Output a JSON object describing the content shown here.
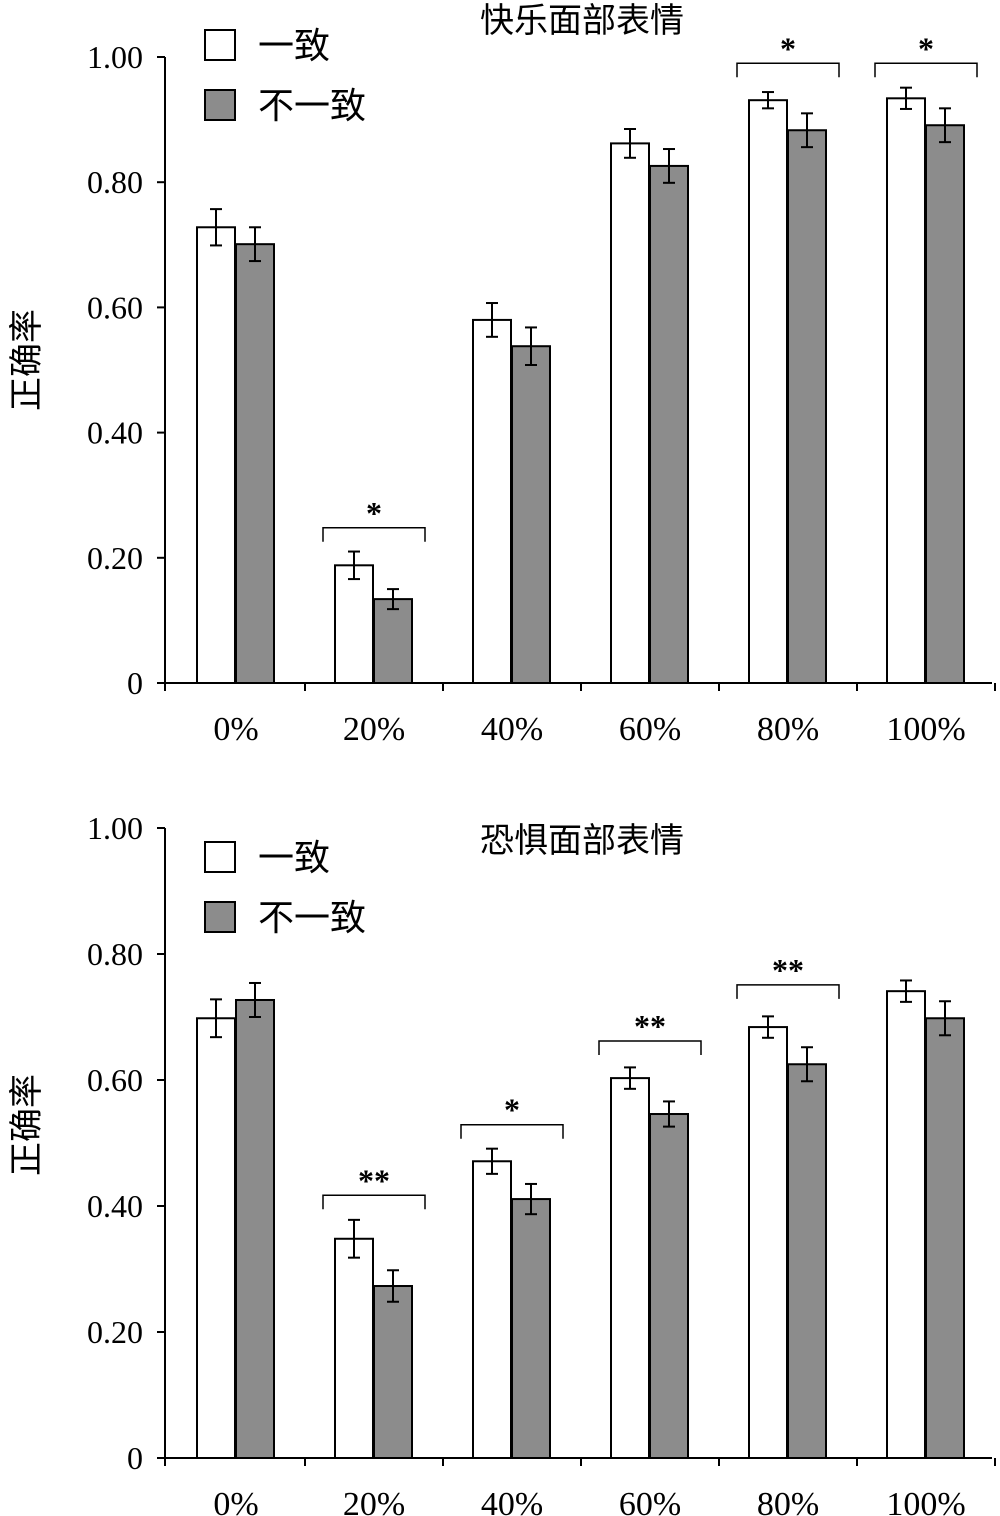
{
  "chart_data": [
    {
      "type": "bar",
      "title": "快乐面部表情",
      "ylabel": "正确率",
      "xlabel": "",
      "ylim": [
        0,
        1.0
      ],
      "yticks": [
        "0",
        "0.20",
        "0.40",
        "0.60",
        "0.80",
        "1.00"
      ],
      "categories": [
        "0%",
        "20%",
        "40%",
        "60%",
        "80%",
        "100%"
      ],
      "legend_position": "top-left",
      "series": [
        {
          "name": "一致",
          "color": "#ffffff",
          "values": [
            0.728,
            0.188,
            0.58,
            0.862,
            0.931,
            0.934
          ],
          "errors": [
            0.029,
            0.022,
            0.027,
            0.023,
            0.013,
            0.017
          ]
        },
        {
          "name": "不一致",
          "color": "#8c8c8c",
          "values": [
            0.701,
            0.134,
            0.538,
            0.826,
            0.883,
            0.891
          ],
          "errors": [
            0.027,
            0.016,
            0.03,
            0.027,
            0.027,
            0.027
          ]
        }
      ],
      "significance": [
        {
          "category": "20%",
          "mark": "*",
          "level": 0.248
        },
        {
          "category": "80%",
          "mark": "*",
          "level": 0.99
        },
        {
          "category": "100%",
          "mark": "*",
          "level": 0.99
        }
      ]
    },
    {
      "type": "bar",
      "title": "恐惧面部表情",
      "ylabel": "正确率",
      "xlabel": "",
      "ylim": [
        0,
        1.0
      ],
      "yticks": [
        "0",
        "0.20",
        "0.40",
        "0.60",
        "0.80",
        "1.00"
      ],
      "categories": [
        "0%",
        "20%",
        "40%",
        "60%",
        "80%",
        "100%"
      ],
      "legend_position": "top-left",
      "series": [
        {
          "name": "一致",
          "color": "#ffffff",
          "values": [
            0.698,
            0.348,
            0.471,
            0.603,
            0.684,
            0.741
          ],
          "errors": [
            0.03,
            0.03,
            0.02,
            0.017,
            0.017,
            0.017
          ]
        },
        {
          "name": "不一致",
          "color": "#8c8c8c",
          "values": [
            0.727,
            0.273,
            0.411,
            0.546,
            0.625,
            0.698
          ],
          "errors": [
            0.027,
            0.025,
            0.024,
            0.02,
            0.027,
            0.027
          ]
        }
      ],
      "significance": [
        {
          "category": "20%",
          "mark": "**",
          "level": 0.417
        },
        {
          "category": "40%",
          "mark": "*",
          "level": 0.529
        },
        {
          "category": "60%",
          "mark": "**",
          "level": 0.662
        },
        {
          "category": "80%",
          "mark": "**",
          "level": 0.751
        }
      ]
    }
  ]
}
